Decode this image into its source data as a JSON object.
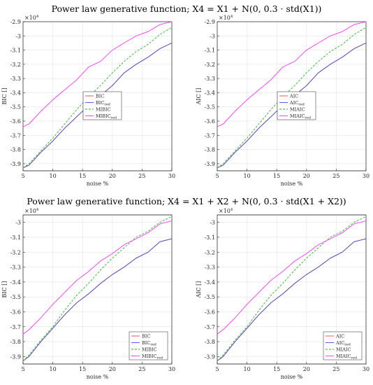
{
  "titles": {
    "top": "Power law generative function; X4 = X1 + N(0, 0.3 · std(X1))",
    "bottom": "Power law generative function; X4 = X1 + X2 + N(0, 0.3 · std(X1 + X2))"
  },
  "colors": {
    "orig": "#ff4040",
    "red": "#4a4ad8",
    "mi": "#22bb22",
    "mired": "#ff33ff"
  },
  "chart_data": [
    {
      "type": "line",
      "xlabel": "noise %",
      "ylabel": "BIC []",
      "exponent_label": "×10",
      "exponent_power": "4",
      "xlim": [
        5,
        30
      ],
      "ylim": [
        -3.95,
        -2.9
      ],
      "xticks": [
        "5",
        "10",
        "15",
        "20",
        "25",
        "30"
      ],
      "yticks": [
        "-3.9",
        "-3.8",
        "-3.7",
        "-3.6",
        "-3.5",
        "-3.4",
        "-3.3",
        "-3.2",
        "-3.1",
        "-3",
        "-2.9"
      ],
      "legend_position": "top-left",
      "x": [
        5,
        6,
        8,
        10,
        12,
        14,
        16,
        18,
        20,
        22,
        24,
        26,
        28,
        30
      ],
      "series": [
        {
          "name": "BIC",
          "sub": "",
          "style": "solid",
          "color_key": "orig",
          "values": [
            -3.93,
            -3.91,
            -3.82,
            -3.74,
            -3.65,
            -3.57,
            -3.49,
            -3.42,
            -3.35,
            -3.26,
            -3.2,
            -3.15,
            -3.09,
            -3.05
          ]
        },
        {
          "name": "BIC",
          "sub": "red",
          "style": "solid",
          "color_key": "red",
          "values": [
            -3.93,
            -3.91,
            -3.82,
            -3.74,
            -3.65,
            -3.57,
            -3.49,
            -3.42,
            -3.35,
            -3.26,
            -3.2,
            -3.15,
            -3.09,
            -3.05
          ]
        },
        {
          "name": "MIBIC",
          "sub": "",
          "style": "dashed",
          "color_key": "mi",
          "values": [
            -3.93,
            -3.9,
            -3.81,
            -3.72,
            -3.62,
            -3.52,
            -3.43,
            -3.35,
            -3.26,
            -3.18,
            -3.11,
            -3.06,
            -2.99,
            -2.94
          ]
        },
        {
          "name": "MIBIC",
          "sub": "red",
          "style": "solid",
          "color_key": "mired",
          "values": [
            -3.64,
            -3.62,
            -3.53,
            -3.45,
            -3.38,
            -3.31,
            -3.22,
            -3.18,
            -3.1,
            -3.05,
            -3.0,
            -2.97,
            -2.92,
            -2.9
          ]
        }
      ]
    },
    {
      "type": "line",
      "xlabel": "noise %",
      "ylabel": "AIC []",
      "exponent_label": "×10",
      "exponent_power": "4",
      "xlim": [
        5,
        30
      ],
      "ylim": [
        -3.95,
        -2.9
      ],
      "xticks": [
        "5",
        "10",
        "15",
        "20",
        "25",
        "30"
      ],
      "yticks": [
        "-3.9",
        "-3.8",
        "-3.7",
        "-3.6",
        "-3.5",
        "-3.4",
        "-3.3",
        "-3.2",
        "-3.1",
        "-3",
        "-2.9"
      ],
      "legend_position": "top-left",
      "x": [
        5,
        6,
        8,
        10,
        12,
        14,
        16,
        18,
        20,
        22,
        24,
        26,
        28,
        30
      ],
      "series": [
        {
          "name": "AIC",
          "sub": "",
          "style": "solid",
          "color_key": "orig",
          "values": [
            -3.93,
            -3.91,
            -3.82,
            -3.74,
            -3.65,
            -3.57,
            -3.49,
            -3.42,
            -3.35,
            -3.26,
            -3.2,
            -3.15,
            -3.09,
            -3.05
          ]
        },
        {
          "name": "AIC",
          "sub": "red",
          "style": "solid",
          "color_key": "red",
          "values": [
            -3.93,
            -3.91,
            -3.82,
            -3.74,
            -3.65,
            -3.57,
            -3.49,
            -3.42,
            -3.35,
            -3.26,
            -3.2,
            -3.15,
            -3.09,
            -3.05
          ]
        },
        {
          "name": "MIAIC",
          "sub": "",
          "style": "dashed",
          "color_key": "mi",
          "values": [
            -3.93,
            -3.9,
            -3.81,
            -3.72,
            -3.62,
            -3.52,
            -3.43,
            -3.35,
            -3.26,
            -3.18,
            -3.11,
            -3.06,
            -2.99,
            -2.94
          ]
        },
        {
          "name": "MIAIC",
          "sub": "red",
          "style": "solid",
          "color_key": "mired",
          "values": [
            -3.64,
            -3.62,
            -3.53,
            -3.45,
            -3.38,
            -3.31,
            -3.22,
            -3.18,
            -3.1,
            -3.05,
            -3.0,
            -2.97,
            -2.92,
            -2.9
          ]
        }
      ]
    },
    {
      "type": "line",
      "xlabel": "noise %",
      "ylabel": "BIC []",
      "exponent_label": "×10",
      "exponent_power": "4",
      "xlim": [
        5,
        30
      ],
      "ylim": [
        -3.95,
        -2.95
      ],
      "xticks": [
        "5",
        "10",
        "15",
        "20",
        "25",
        "30"
      ],
      "yticks": [
        "-3.9",
        "-3.8",
        "-3.7",
        "-3.6",
        "-3.5",
        "-3.4",
        "-3.3",
        "-3.2",
        "-3.1",
        "-3"
      ],
      "legend_position": "bottom-right",
      "x": [
        5,
        6,
        8,
        10,
        12,
        14,
        16,
        18,
        20,
        22,
        24,
        26,
        28,
        30
      ],
      "series": [
        {
          "name": "BIC",
          "sub": "",
          "style": "solid",
          "color_key": "orig",
          "values": [
            -3.93,
            -3.9,
            -3.8,
            -3.71,
            -3.62,
            -3.54,
            -3.48,
            -3.41,
            -3.35,
            -3.3,
            -3.24,
            -3.2,
            -3.13,
            -3.11
          ]
        },
        {
          "name": "BIC",
          "sub": "red",
          "style": "solid",
          "color_key": "red",
          "values": [
            -3.93,
            -3.9,
            -3.8,
            -3.71,
            -3.62,
            -3.54,
            -3.48,
            -3.41,
            -3.35,
            -3.3,
            -3.24,
            -3.2,
            -3.13,
            -3.11
          ]
        },
        {
          "name": "MIBIC",
          "sub": "",
          "style": "dashed",
          "color_key": "mi",
          "values": [
            -3.93,
            -3.89,
            -3.79,
            -3.7,
            -3.59,
            -3.49,
            -3.41,
            -3.32,
            -3.24,
            -3.17,
            -3.1,
            -3.06,
            -3.0,
            -2.96
          ]
        },
        {
          "name": "MIBIC",
          "sub": "red",
          "style": "solid",
          "color_key": "mired",
          "values": [
            -3.75,
            -3.72,
            -3.64,
            -3.55,
            -3.47,
            -3.39,
            -3.33,
            -3.26,
            -3.21,
            -3.15,
            -3.11,
            -3.07,
            -3.01,
            -2.99
          ]
        }
      ]
    },
    {
      "type": "line",
      "xlabel": "noise %",
      "ylabel": "AIC []",
      "exponent_label": "×10",
      "exponent_power": "4",
      "xlim": [
        5,
        30
      ],
      "ylim": [
        -3.95,
        -2.95
      ],
      "xticks": [
        "5",
        "10",
        "15",
        "20",
        "25",
        "30"
      ],
      "yticks": [
        "-3.9",
        "-3.8",
        "-3.7",
        "-3.6",
        "-3.5",
        "-3.4",
        "-3.3",
        "-3.2",
        "-3.1",
        "-3"
      ],
      "legend_position": "bottom-right",
      "x": [
        5,
        6,
        8,
        10,
        12,
        14,
        16,
        18,
        20,
        22,
        24,
        26,
        28,
        30
      ],
      "series": [
        {
          "name": "AIC",
          "sub": "",
          "style": "solid",
          "color_key": "orig",
          "values": [
            -3.93,
            -3.9,
            -3.8,
            -3.71,
            -3.62,
            -3.54,
            -3.48,
            -3.41,
            -3.35,
            -3.3,
            -3.24,
            -3.2,
            -3.13,
            -3.11
          ]
        },
        {
          "name": "AIC",
          "sub": "red",
          "style": "solid",
          "color_key": "red",
          "values": [
            -3.93,
            -3.9,
            -3.8,
            -3.71,
            -3.62,
            -3.54,
            -3.48,
            -3.41,
            -3.35,
            -3.3,
            -3.24,
            -3.2,
            -3.13,
            -3.11
          ]
        },
        {
          "name": "MIAIC",
          "sub": "",
          "style": "dashed",
          "color_key": "mi",
          "values": [
            -3.93,
            -3.89,
            -3.79,
            -3.7,
            -3.59,
            -3.49,
            -3.41,
            -3.32,
            -3.24,
            -3.17,
            -3.1,
            -3.06,
            -3.0,
            -2.96
          ]
        },
        {
          "name": "MIAIC",
          "sub": "red",
          "style": "solid",
          "color_key": "mired",
          "values": [
            -3.75,
            -3.72,
            -3.64,
            -3.55,
            -3.47,
            -3.39,
            -3.33,
            -3.26,
            -3.21,
            -3.15,
            -3.11,
            -3.07,
            -3.01,
            -2.99
          ]
        }
      ]
    }
  ]
}
